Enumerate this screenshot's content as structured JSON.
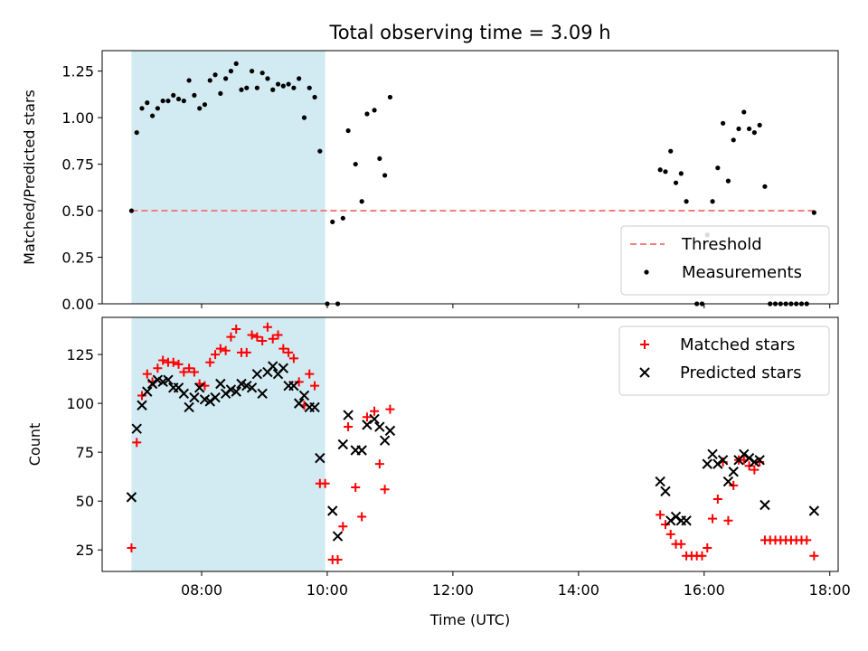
{
  "figure": {
    "title": "Total observing time = 3.09 h",
    "xlabel": "Time (UTC)",
    "x_tick_labels": [
      "08:00",
      "10:00",
      "12:00",
      "14:00",
      "16:00",
      "18:00"
    ],
    "shaded_color": "#add8e6"
  },
  "chart_data": [
    {
      "type": "scatter",
      "ylabel": "Matched/Predicted stars",
      "ylim": [
        0,
        1.36
      ],
      "xlim": [
        "06:25",
        "18:08"
      ],
      "y_tick_labels": [
        "0.00",
        "0.25",
        "0.50",
        "0.75",
        "1.00",
        "1.25"
      ],
      "shaded_region": [
        "06:53",
        "09:58"
      ],
      "legend": {
        "position": "lower right",
        "entries": [
          "Threshold",
          "Measurements"
        ]
      },
      "threshold": {
        "name": "Threshold",
        "y": 0.5,
        "x_range": [
          "06:53",
          "17:45"
        ],
        "color": "#f08080"
      },
      "series": [
        {
          "name": "Measurements",
          "color": "#000000",
          "points": [
            [
              "06:53",
              0.5
            ],
            [
              "06:58",
              0.92
            ],
            [
              "07:03",
              1.05
            ],
            [
              "07:08",
              1.08
            ],
            [
              "07:13",
              1.01
            ],
            [
              "07:18",
              1.05
            ],
            [
              "07:23",
              1.09
            ],
            [
              "07:28",
              1.09
            ],
            [
              "07:33",
              1.12
            ],
            [
              "07:38",
              1.1
            ],
            [
              "07:43",
              1.09
            ],
            [
              "07:48",
              1.2
            ],
            [
              "07:53",
              1.12
            ],
            [
              "07:58",
              1.05
            ],
            [
              "08:03",
              1.07
            ],
            [
              "08:08",
              1.2
            ],
            [
              "08:13",
              1.23
            ],
            [
              "08:18",
              1.13
            ],
            [
              "08:23",
              1.21
            ],
            [
              "08:28",
              1.25
            ],
            [
              "08:33",
              1.29
            ],
            [
              "08:38",
              1.15
            ],
            [
              "08:43",
              1.16
            ],
            [
              "08:48",
              1.25
            ],
            [
              "08:53",
              1.16
            ],
            [
              "08:58",
              1.24
            ],
            [
              "09:03",
              1.21
            ],
            [
              "09:08",
              1.15
            ],
            [
              "09:13",
              1.18
            ],
            [
              "09:18",
              1.17
            ],
            [
              "09:23",
              1.18
            ],
            [
              "09:28",
              1.16
            ],
            [
              "09:33",
              1.21
            ],
            [
              "09:38",
              1.0
            ],
            [
              "09:43",
              1.16
            ],
            [
              "09:48",
              1.11
            ],
            [
              "09:53",
              0.82
            ],
            [
              "10:00",
              0.0
            ],
            [
              "10:05",
              0.44
            ],
            [
              "10:10",
              0.0
            ],
            [
              "10:15",
              0.46
            ],
            [
              "10:20",
              0.93
            ],
            [
              "10:27",
              0.75
            ],
            [
              "10:33",
              0.55
            ],
            [
              "10:38",
              1.02
            ],
            [
              "10:45",
              1.04
            ],
            [
              "10:50",
              0.78
            ],
            [
              "10:55",
              0.69
            ],
            [
              "11:00",
              1.11
            ],
            [
              "15:18",
              0.72
            ],
            [
              "15:23",
              0.71
            ],
            [
              "15:28",
              0.82
            ],
            [
              "15:33",
              0.65
            ],
            [
              "15:38",
              0.7
            ],
            [
              "15:43",
              0.55
            ],
            [
              "15:53",
              0.0
            ],
            [
              "15:58",
              0.0
            ],
            [
              "16:03",
              0.37
            ],
            [
              "16:08",
              0.55
            ],
            [
              "16:13",
              0.73
            ],
            [
              "16:18",
              0.97
            ],
            [
              "16:23",
              0.66
            ],
            [
              "16:28",
              0.88
            ],
            [
              "16:33",
              0.94
            ],
            [
              "16:38",
              1.03
            ],
            [
              "16:43",
              0.94
            ],
            [
              "16:48",
              0.92
            ],
            [
              "16:53",
              0.96
            ],
            [
              "16:58",
              0.63
            ],
            [
              "17:03",
              0.0
            ],
            [
              "17:08",
              0.0
            ],
            [
              "17:13",
              0.0
            ],
            [
              "17:18",
              0.0
            ],
            [
              "17:23",
              0.0
            ],
            [
              "17:28",
              0.0
            ],
            [
              "17:33",
              0.0
            ],
            [
              "17:38",
              0.0
            ],
            [
              "17:45",
              0.49
            ]
          ]
        }
      ]
    },
    {
      "type": "scatter",
      "ylabel": "Count",
      "ylim": [
        14,
        144
      ],
      "xlim": [
        "06:25",
        "18:08"
      ],
      "y_tick_labels": [
        "25",
        "50",
        "75",
        "100",
        "125"
      ],
      "shaded_region": [
        "06:53",
        "09:58"
      ],
      "legend": {
        "position": "upper right",
        "entries": [
          "Matched stars",
          "Predicted stars"
        ]
      },
      "series": [
        {
          "name": "Matched stars",
          "marker": "+",
          "color": "#ff0000",
          "points": [
            [
              "06:53",
              26
            ],
            [
              "06:58",
              80
            ],
            [
              "07:03",
              104
            ],
            [
              "07:08",
              115
            ],
            [
              "07:13",
              111
            ],
            [
              "07:18",
              118
            ],
            [
              "07:23",
              122
            ],
            [
              "07:28",
              121
            ],
            [
              "07:33",
              121
            ],
            [
              "07:38",
              120
            ],
            [
              "07:43",
              116
            ],
            [
              "07:48",
              118
            ],
            [
              "07:53",
              116
            ],
            [
              "07:58",
              110
            ],
            [
              "08:03",
              109
            ],
            [
              "08:08",
              121
            ],
            [
              "08:13",
              125
            ],
            [
              "08:18",
              128
            ],
            [
              "08:23",
              127
            ],
            [
              "08:28",
              134
            ],
            [
              "08:33",
              138
            ],
            [
              "08:38",
              126
            ],
            [
              "08:43",
              126
            ],
            [
              "08:48",
              135
            ],
            [
              "08:53",
              134
            ],
            [
              "08:58",
              132
            ],
            [
              "09:03",
              139
            ],
            [
              "09:08",
              133
            ],
            [
              "09:13",
              135
            ],
            [
              "09:18",
              128
            ],
            [
              "09:23",
              126
            ],
            [
              "09:28",
              123
            ],
            [
              "09:33",
              111
            ],
            [
              "09:38",
              99
            ],
            [
              "09:43",
              115
            ],
            [
              "09:48",
              109
            ],
            [
              "09:53",
              59
            ],
            [
              "09:58",
              59
            ],
            [
              "10:05",
              20
            ],
            [
              "10:10",
              20
            ],
            [
              "10:15",
              37
            ],
            [
              "10:20",
              88
            ],
            [
              "10:27",
              57
            ],
            [
              "10:33",
              42
            ],
            [
              "10:38",
              93
            ],
            [
              "10:45",
              96
            ],
            [
              "10:50",
              69
            ],
            [
              "10:55",
              56
            ],
            [
              "11:00",
              97
            ],
            [
              "15:18",
              43
            ],
            [
              "15:23",
              38
            ],
            [
              "15:28",
              33
            ],
            [
              "15:33",
              28
            ],
            [
              "15:38",
              28
            ],
            [
              "15:43",
              22
            ],
            [
              "15:48",
              22
            ],
            [
              "15:53",
              22
            ],
            [
              "15:58",
              22
            ],
            [
              "16:03",
              26
            ],
            [
              "16:08",
              41
            ],
            [
              "16:13",
              51
            ],
            [
              "16:18",
              70
            ],
            [
              "16:23",
              40
            ],
            [
              "16:28",
              58
            ],
            [
              "16:33",
              71
            ],
            [
              "16:38",
              71
            ],
            [
              "16:43",
              68
            ],
            [
              "16:48",
              66
            ],
            [
              "16:53",
              70
            ],
            [
              "16:58",
              30
            ],
            [
              "17:03",
              30
            ],
            [
              "17:08",
              30
            ],
            [
              "17:13",
              30
            ],
            [
              "17:18",
              30
            ],
            [
              "17:23",
              30
            ],
            [
              "17:28",
              30
            ],
            [
              "17:33",
              30
            ],
            [
              "17:38",
              30
            ],
            [
              "17:45",
              22
            ]
          ]
        },
        {
          "name": "Predicted stars",
          "marker": "x",
          "color": "#000000",
          "points": [
            [
              "06:53",
              52
            ],
            [
              "06:58",
              87
            ],
            [
              "07:03",
              99
            ],
            [
              "07:08",
              106
            ],
            [
              "07:13",
              110
            ],
            [
              "07:18",
              112
            ],
            [
              "07:23",
              111
            ],
            [
              "07:28",
              112
            ],
            [
              "07:33",
              108
            ],
            [
              "07:38",
              108
            ],
            [
              "07:43",
              105
            ],
            [
              "07:48",
              98
            ],
            [
              "07:53",
              103
            ],
            [
              "07:58",
              108
            ],
            [
              "08:03",
              102
            ],
            [
              "08:08",
              101
            ],
            [
              "08:13",
              103
            ],
            [
              "08:18",
              110
            ],
            [
              "08:23",
              105
            ],
            [
              "08:28",
              107
            ],
            [
              "08:33",
              106
            ],
            [
              "08:38",
              110
            ],
            [
              "08:43",
              109
            ],
            [
              "08:48",
              108
            ],
            [
              "08:53",
              115
            ],
            [
              "08:58",
              105
            ],
            [
              "09:03",
              116
            ],
            [
              "09:08",
              119
            ],
            [
              "09:13",
              115
            ],
            [
              "09:18",
              118
            ],
            [
              "09:23",
              109
            ],
            [
              "09:28",
              109
            ],
            [
              "09:33",
              100
            ],
            [
              "09:38",
              104
            ],
            [
              "09:43",
              98
            ],
            [
              "09:48",
              98
            ],
            [
              "09:53",
              72
            ],
            [
              "10:05",
              45
            ],
            [
              "10:10",
              32
            ],
            [
              "10:15",
              79
            ],
            [
              "10:20",
              94
            ],
            [
              "10:27",
              76
            ],
            [
              "10:33",
              76
            ],
            [
              "10:38",
              89
            ],
            [
              "10:45",
              92
            ],
            [
              "10:50",
              88
            ],
            [
              "10:55",
              81
            ],
            [
              "11:00",
              86
            ],
            [
              "15:18",
              60
            ],
            [
              "15:23",
              55
            ],
            [
              "15:28",
              40
            ],
            [
              "15:33",
              42
            ],
            [
              "15:38",
              40
            ],
            [
              "15:43",
              40
            ],
            [
              "16:03",
              69
            ],
            [
              "16:08",
              74
            ],
            [
              "16:13",
              69
            ],
            [
              "16:18",
              71
            ],
            [
              "16:23",
              60
            ],
            [
              "16:28",
              65
            ],
            [
              "16:33",
              71
            ],
            [
              "16:38",
              74
            ],
            [
              "16:43",
              72
            ],
            [
              "16:48",
              70
            ],
            [
              "16:53",
              71
            ],
            [
              "16:58",
              48
            ],
            [
              "17:45",
              45
            ]
          ]
        }
      ]
    }
  ]
}
